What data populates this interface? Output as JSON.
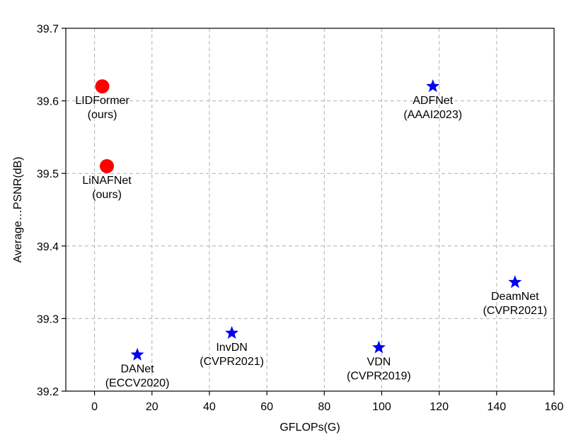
{
  "chart_data": {
    "type": "scatter",
    "title": "",
    "xlabel": "GFLOPs(G)",
    "ylabel": "Average…PSNR(dB)",
    "xlim": [
      -10,
      160
    ],
    "ylim": [
      39.2,
      39.7
    ],
    "xticks": [
      "0",
      "20",
      "40",
      "60",
      "80",
      "100",
      "120",
      "140",
      "160"
    ],
    "yticks": [
      "39.2",
      "39.3",
      "39.4",
      "39.5",
      "39.6",
      "39.7"
    ],
    "grid": true,
    "colors": {
      "ours": "#ff0000",
      "others": "#0000ee",
      "grid": "#b0b0b0"
    },
    "points": [
      {
        "name": "LIDFormer",
        "venue": "(ours)",
        "x": 2.7,
        "y": 39.62,
        "marker": "circle",
        "group": "ours"
      },
      {
        "name": "LiNAFNet",
        "venue": "(ours)",
        "x": 4.3,
        "y": 39.51,
        "marker": "circle",
        "group": "ours"
      },
      {
        "name": "ADFNet",
        "venue": "(AAAI2023)",
        "x": 117.8,
        "y": 39.62,
        "marker": "star",
        "group": "others"
      },
      {
        "name": "DeamNet",
        "venue": "(CVPR2021)",
        "x": 146.4,
        "y": 39.35,
        "marker": "star",
        "group": "others"
      },
      {
        "name": "InvDN",
        "venue": "(CVPR2021)",
        "x": 47.8,
        "y": 39.28,
        "marker": "star",
        "group": "others"
      },
      {
        "name": "VDN",
        "venue": "(CVPR2019)",
        "x": 99.0,
        "y": 39.26,
        "marker": "star",
        "group": "others"
      },
      {
        "name": "DANet",
        "venue": "(ECCV2020)",
        "x": 14.9,
        "y": 39.25,
        "marker": "star",
        "group": "others"
      }
    ]
  }
}
